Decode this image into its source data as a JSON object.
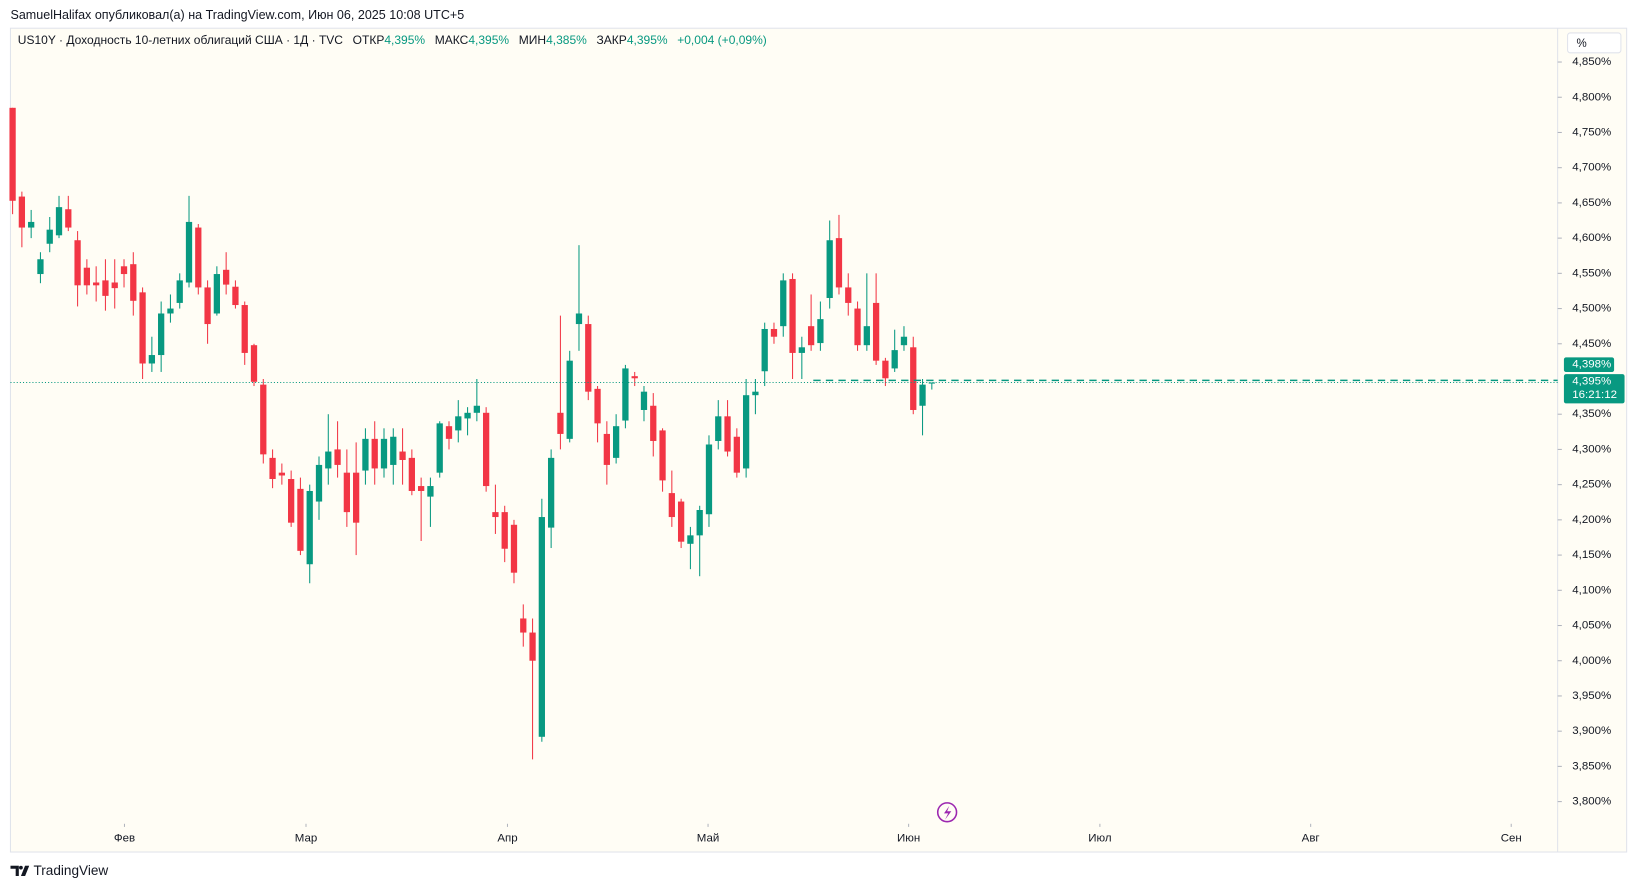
{
  "header": {
    "published": "SamuelHalifax опубликовал(а) на TradingView.com, Июн 06, 2025 10:08 UTC+5",
    "scale_button": "%"
  },
  "legend": {
    "open_label": "ОТКР",
    "open_value": "4,395%",
    "high_label": "МАКС",
    "high_value": "4,395%",
    "low_label": "МИН",
    "low_value": "4,385%",
    "close_label": "ЗАКР",
    "close_value": "4,395%",
    "change": "+0,004 (+0,09%)"
  },
  "footer": {
    "brand": "TradingView"
  },
  "chart_data": {
    "type": "candlestick",
    "title": "US10Y · Доходность 10-летних облигаций США · 1Д · TVC",
    "up_color": "#089981",
    "down_color": "#f23645",
    "open": [
      4.785,
      4.659,
      4.615,
      4.549,
      4.592,
      4.604,
      4.641,
      4.597,
      4.558,
      4.537,
      4.54,
      4.537,
      4.56,
      4.563,
      4.523,
      4.422,
      4.434,
      4.493,
      4.508,
      4.537,
      4.615,
      4.53,
      4.493,
      4.555,
      4.531,
      4.505,
      4.448,
      4.392,
      4.288,
      4.267,
      4.258,
      4.244,
      4.137,
      4.226,
      4.273,
      4.3,
      4.267,
      4.267,
      4.27,
      4.315,
      4.273,
      4.278,
      4.297,
      4.288,
      4.248,
      4.233,
      4.267,
      4.333,
      4.327,
      4.344,
      4.352,
      4.352,
      4.211,
      4.211,
      4.193,
      4.06,
      4.04,
      3.892,
      4.189,
      4.352,
      4.315,
      4.478,
      4.478,
      4.386,
      4.322,
      4.288,
      4.341,
      4.404,
      4.356,
      4.362,
      4.327,
      4.238,
      4.226,
      4.166,
      4.178,
      4.208,
      4.312,
      4.347,
      4.318,
      4.273,
      4.377,
      4.411,
      4.471,
      4.475,
      4.542,
      4.437,
      4.475,
      4.451,
      4.515,
      4.6,
      4.53,
      4.5,
      4.448,
      4.508,
      4.426,
      4.415,
      4.448,
      4.445,
      4.362,
      4.395
    ],
    "high": [
      4.785,
      4.666,
      4.64,
      4.58,
      4.63,
      4.66,
      4.66,
      4.61,
      4.57,
      4.56,
      4.57,
      4.57,
      4.57,
      4.58,
      4.53,
      4.46,
      4.51,
      4.52,
      4.55,
      4.66,
      4.62,
      4.54,
      4.56,
      4.58,
      4.54,
      4.51,
      4.45,
      4.4,
      4.3,
      4.28,
      4.27,
      4.26,
      4.25,
      4.29,
      4.35,
      4.34,
      4.3,
      4.31,
      4.33,
      4.34,
      4.33,
      4.33,
      4.33,
      4.3,
      4.26,
      4.26,
      4.34,
      4.34,
      4.37,
      4.36,
      4.4,
      4.36,
      4.25,
      4.22,
      4.2,
      4.08,
      4.06,
      4.23,
      4.3,
      4.49,
      4.44,
      4.59,
      4.49,
      4.39,
      4.34,
      4.35,
      4.42,
      4.41,
      4.39,
      4.38,
      4.33,
      4.27,
      4.23,
      4.19,
      4.22,
      4.32,
      4.37,
      4.37,
      4.33,
      4.4,
      4.4,
      4.48,
      4.48,
      4.55,
      4.55,
      4.46,
      4.52,
      4.51,
      4.625,
      4.633,
      4.55,
      4.51,
      4.55,
      4.55,
      4.43,
      4.47,
      4.475,
      4.46,
      4.4,
      4.395
    ],
    "low": [
      4.634,
      4.587,
      4.6,
      4.536,
      4.58,
      4.6,
      4.61,
      4.503,
      4.52,
      4.51,
      4.497,
      4.5,
      4.53,
      4.49,
      4.4,
      4.41,
      4.41,
      4.48,
      4.5,
      4.53,
      4.52,
      4.45,
      4.49,
      4.52,
      4.5,
      4.42,
      4.39,
      4.28,
      4.245,
      4.25,
      4.19,
      4.15,
      4.11,
      4.2,
      4.25,
      4.26,
      4.19,
      4.15,
      4.25,
      4.25,
      4.26,
      4.25,
      4.25,
      4.235,
      4.17,
      4.19,
      4.26,
      4.3,
      4.31,
      4.32,
      4.34,
      4.24,
      4.18,
      4.14,
      4.11,
      4.02,
      3.86,
      3.885,
      4.16,
      4.3,
      4.31,
      4.44,
      4.37,
      4.31,
      4.25,
      4.28,
      4.33,
      4.39,
      4.34,
      4.29,
      4.24,
      4.19,
      4.16,
      4.13,
      4.12,
      4.19,
      4.3,
      4.29,
      4.26,
      4.26,
      4.35,
      4.39,
      4.45,
      4.46,
      4.4,
      4.4,
      4.44,
      4.44,
      4.5,
      4.52,
      4.49,
      4.44,
      4.44,
      4.42,
      4.39,
      4.41,
      4.44,
      4.35,
      4.32,
      4.385
    ],
    "close": [
      4.653,
      4.615,
      4.623,
      4.57,
      4.612,
      4.644,
      4.615,
      4.533,
      4.533,
      4.533,
      4.518,
      4.529,
      4.549,
      4.511,
      4.422,
      4.434,
      4.493,
      4.5,
      4.54,
      4.623,
      4.53,
      4.478,
      4.549,
      4.534,
      4.505,
      4.437,
      4.396,
      4.293,
      4.258,
      4.263,
      4.196,
      4.156,
      4.241,
      4.278,
      4.297,
      4.278,
      4.211,
      4.196,
      4.315,
      4.273,
      4.315,
      4.318,
      4.285,
      4.241,
      4.241,
      4.248,
      4.337,
      4.315,
      4.347,
      4.352,
      4.362,
      4.248,
      4.204,
      4.159,
      4.125,
      4.04,
      4.0,
      4.204,
      4.288,
      4.322,
      4.426,
      4.493,
      4.382,
      4.337,
      4.278,
      4.333,
      4.415,
      4.401,
      4.382,
      4.312,
      4.256,
      4.204,
      4.169,
      4.178,
      4.214,
      4.307,
      4.347,
      4.297,
      4.267,
      4.377,
      4.382,
      4.471,
      4.46,
      4.54,
      4.437,
      4.445,
      4.448,
      4.485,
      4.597,
      4.53,
      4.508,
      4.448,
      4.475,
      4.426,
      4.401,
      4.441,
      4.46,
      4.356,
      4.392,
      4.395
    ],
    "ylim": [
      3.77,
      4.898
    ],
    "yticks": [
      {
        "value": 4.85,
        "label": "4,850%"
      },
      {
        "value": 4.8,
        "label": "4,800%"
      },
      {
        "value": 4.75,
        "label": "4,750%"
      },
      {
        "value": 4.7,
        "label": "4,700%"
      },
      {
        "value": 4.65,
        "label": "4,650%"
      },
      {
        "value": 4.6,
        "label": "4,600%"
      },
      {
        "value": 4.55,
        "label": "4,550%"
      },
      {
        "value": 4.5,
        "label": "4,500%"
      },
      {
        "value": 4.45,
        "label": "4,450%"
      },
      {
        "value": 4.35,
        "label": "4,350%"
      },
      {
        "value": 4.3,
        "label": "4,300%"
      },
      {
        "value": 4.25,
        "label": "4,250%"
      },
      {
        "value": 4.2,
        "label": "4,200%"
      },
      {
        "value": 4.15,
        "label": "4,150%"
      },
      {
        "value": 4.1,
        "label": "4,100%"
      },
      {
        "value": 4.05,
        "label": "4,050%"
      },
      {
        "value": 4.0,
        "label": "4,000%"
      },
      {
        "value": 3.95,
        "label": "3,950%"
      },
      {
        "value": 3.9,
        "label": "3,900%"
      },
      {
        "value": 3.85,
        "label": "3,850%"
      },
      {
        "value": 3.8,
        "label": "3,800%"
      }
    ],
    "xlim": [
      -0.23,
      166.4
    ],
    "xticks": [
      {
        "value": 12.05,
        "label": "Фев"
      },
      {
        "value": 31.6,
        "label": "Мар"
      },
      {
        "value": 53.3,
        "label": "Апр"
      },
      {
        "value": 74.9,
        "label": "Май"
      },
      {
        "value": 96.5,
        "label": "Июн"
      },
      {
        "value": 117.1,
        "label": "Июл"
      },
      {
        "value": 139.8,
        "label": "Авг"
      },
      {
        "value": 161.4,
        "label": "Сен"
      }
    ],
    "price_lines": [
      {
        "value": 4.398,
        "label": "4,398%"
      },
      {
        "value": 4.395,
        "label": "4,395%"
      }
    ],
    "countdown": "16:21:12"
  }
}
